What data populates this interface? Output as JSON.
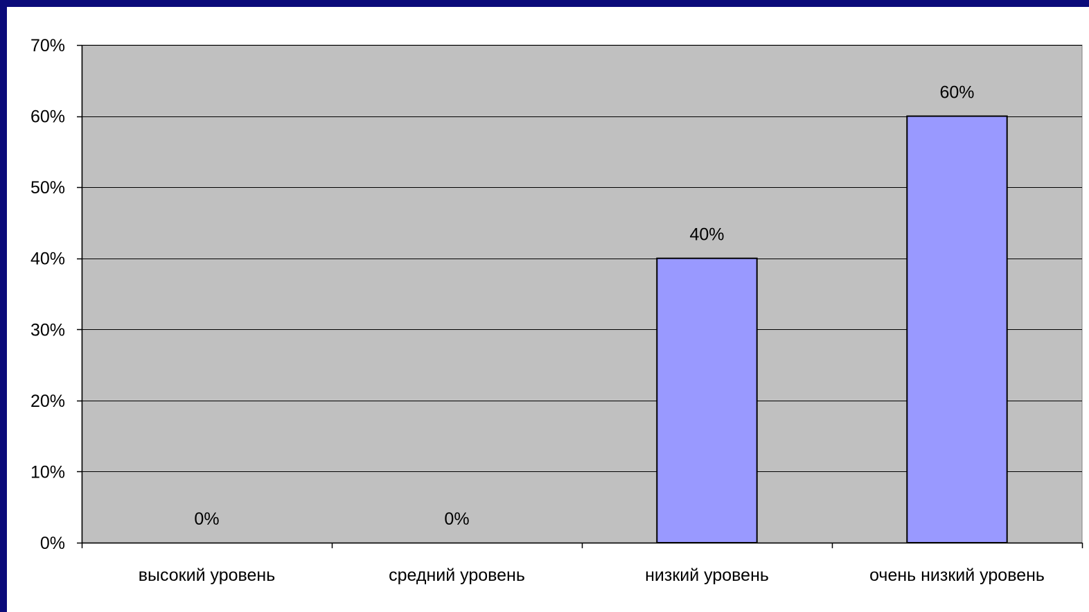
{
  "colors": {
    "frame": "#0b0b7a",
    "background": "#ffffff",
    "plot_area": "#c0c0c0",
    "gridline": "#000000",
    "bar_fill": "#9999ff",
    "bar_stroke": "#000000"
  },
  "chart_data": {
    "type": "bar",
    "categories": [
      "высокий уровень",
      "средний уровень",
      "низкий уровень",
      "очень низкий уровень"
    ],
    "values": [
      0,
      0,
      40,
      60
    ],
    "data_labels": [
      "0%",
      "0%",
      "40%",
      "60%"
    ],
    "y_tick_labels": [
      "0%",
      "10%",
      "20%",
      "30%",
      "40%",
      "50%",
      "60%",
      "70%"
    ],
    "y_ticks": [
      0,
      10,
      20,
      30,
      40,
      50,
      60,
      70
    ],
    "ylim": [
      0,
      70
    ],
    "grid": true,
    "legend": "none"
  }
}
